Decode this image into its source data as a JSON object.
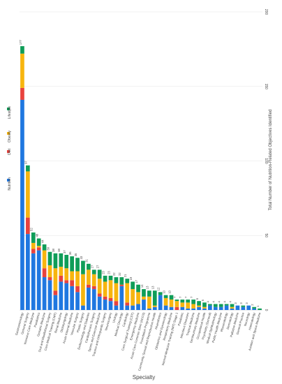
{
  "chart_data": {
    "type": "bar",
    "stacked": true,
    "orientation": "vertical-rotated",
    "xlabel": "Specialty",
    "ylabel": "Total Number of Nutrition-Related Objectives Identified",
    "ylim": [
      0,
      200
    ],
    "yticks": [
      0,
      50,
      100,
      150,
      200
    ],
    "grid": true,
    "legend_position": "left",
    "categories": [
      "Gastroenterology",
      "General Surgery",
      "Intensive Care Medicine",
      "Paediatrics",
      "Geriatric Medicine",
      "Oral and Maxillofacial Surgery",
      "Core Medical Training (CMT)",
      "Renal Medicine",
      "Otolaryngology",
      "Acute Internal Medicine",
      "Vascular Surgery",
      "Plastic Surgery",
      "Endocrinology and Diabetes",
      "Cardiothoracic Surgery",
      "Sports and Exercise Medicine",
      "Trauma and Orthopaedic Surgery",
      "Neurosurgery",
      "Urology",
      "Medical Oncology",
      "Cardiology",
      "Core Surgical Training (CST)",
      "Emergency Medicine",
      "Acute Care Common Stem (ACCS)",
      "Foundation Programme",
      "Community Sexual and Reproductive Health",
      "Anaesthetics",
      "Obstetrics and Gynaecology",
      "Respiratory Medicine",
      "Internal Medicine Training (IMT) Stage 1",
      "Paediatric",
      "Infectious Diseases",
      "Tropical Medicine",
      "Genitourinary Medicine",
      "Occupational Health",
      "Psychiatry (General)",
      "Medical Ophthalmology",
      "Public Health Medicine",
      "Rheumatology",
      "Dermatology",
      "Palliative Medicine",
      "General Practice",
      "Neurology",
      "Haematology",
      "Aviation and Space Medicine"
    ],
    "totals": [
      177,
      97,
      52,
      48,
      44,
      39,
      38,
      38,
      37,
      36,
      35,
      33,
      31,
      27,
      27,
      23,
      23,
      22,
      22,
      21,
      19,
      17,
      14,
      13,
      13,
      12,
      10,
      10,
      7,
      7,
      7,
      7,
      6,
      5,
      4,
      4,
      4,
      4,
      4,
      3,
      3,
      3,
      2,
      1
    ],
    "series": [
      {
        "name": "Nutrition",
        "color": "#1f77e0",
        "values": [
          141,
          51,
          38,
          40,
          22,
          20,
          10,
          19,
          18,
          16,
          12,
          3,
          15,
          14,
          9,
          7,
          6,
          3,
          16,
          3,
          3,
          4,
          7,
          1,
          2,
          10,
          3,
          2,
          0,
          2,
          1,
          1,
          2,
          1,
          3,
          2,
          2,
          3,
          1,
          3,
          2,
          3,
          1,
          0
        ]
      },
      {
        "name": "Diet",
        "color": "#e8423d",
        "values": [
          8,
          11,
          3,
          2,
          6,
          2,
          3,
          4,
          2,
          4,
          4,
          0,
          2,
          2,
          2,
          2,
          2,
          3,
          1,
          2,
          0,
          0,
          0,
          0,
          0,
          0,
          0,
          0,
          2,
          0,
          0,
          0,
          0,
          0,
          0,
          0,
          0,
          0,
          0,
          0,
          0,
          0,
          0,
          0
        ]
      },
      {
        "name": "Obesity",
        "color": "#f7b50f",
        "values": [
          23,
          31,
          4,
          1,
          12,
          8,
          15,
          6,
          8,
          6,
          10,
          21,
          10,
          8,
          10,
          10,
          12,
          12,
          0,
          13,
          11,
          8,
          2,
          8,
          1,
          0,
          5,
          5,
          4,
          3,
          4,
          3,
          1,
          1,
          0,
          0,
          0,
          0,
          1,
          0,
          0,
          0,
          0,
          0
        ]
      },
      {
        "name": "Lifestyle",
        "color": "#0f9d58",
        "values": [
          5,
          4,
          7,
          5,
          4,
          9,
          10,
          9,
          9,
          10,
          9,
          9,
          4,
          3,
          6,
          4,
          3,
          4,
          5,
          3,
          5,
          5,
          5,
          4,
          10,
          2,
          2,
          3,
          1,
          2,
          2,
          3,
          3,
          3,
          1,
          2,
          2,
          1,
          2,
          0,
          1,
          0,
          1,
          1
        ]
      }
    ]
  }
}
